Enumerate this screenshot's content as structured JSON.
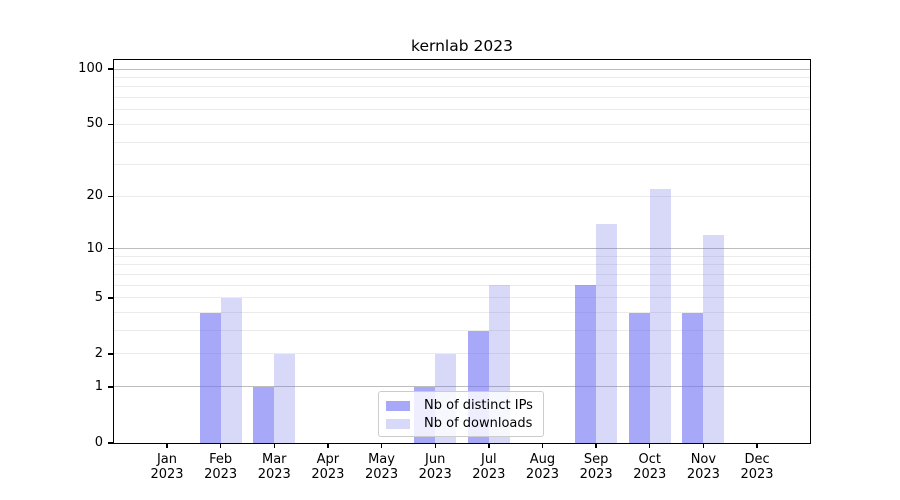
{
  "chart_data": {
    "type": "bar",
    "title": "kernlab 2023",
    "categories": [
      "Jan",
      "Feb",
      "Mar",
      "Apr",
      "May",
      "Jun",
      "Jul",
      "Aug",
      "Sep",
      "Oct",
      "Nov",
      "Dec"
    ],
    "x_year_label": "2023",
    "series": [
      {
        "name": "Nb of distinct IPs",
        "values": [
          0,
          4,
          1,
          0,
          0,
          1,
          3,
          0,
          6,
          4,
          4,
          0
        ],
        "color": "#a8a8f8",
        "rgba": "rgba(115,115,244,0.62)"
      },
      {
        "name": "Nb of downloads",
        "values": [
          0,
          5,
          2,
          0,
          0,
          2,
          6,
          0,
          14,
          22,
          12,
          0
        ],
        "color": "#d8d8f8",
        "rgba": "rgba(100,100,228,0.25)"
      }
    ],
    "y_scale": "log1p",
    "ylim": [
      0,
      112
    ],
    "y_ticks": [
      0,
      1,
      2,
      5,
      10,
      20,
      50,
      100
    ],
    "y_major_gridlines": [
      1,
      10,
      100
    ],
    "y_minor_gridlines": [
      2,
      3,
      4,
      5,
      6,
      7,
      8,
      9,
      20,
      30,
      40,
      50,
      60,
      70,
      80,
      90
    ],
    "grid": true,
    "legend_position": "lower center"
  },
  "colors": {
    "background": "#ffffff",
    "spine": "#000000",
    "major_grid": "#bdbdbd",
    "minor_grid": "#ebebeb",
    "text": "#000000",
    "legend_border": "#cccccc"
  }
}
